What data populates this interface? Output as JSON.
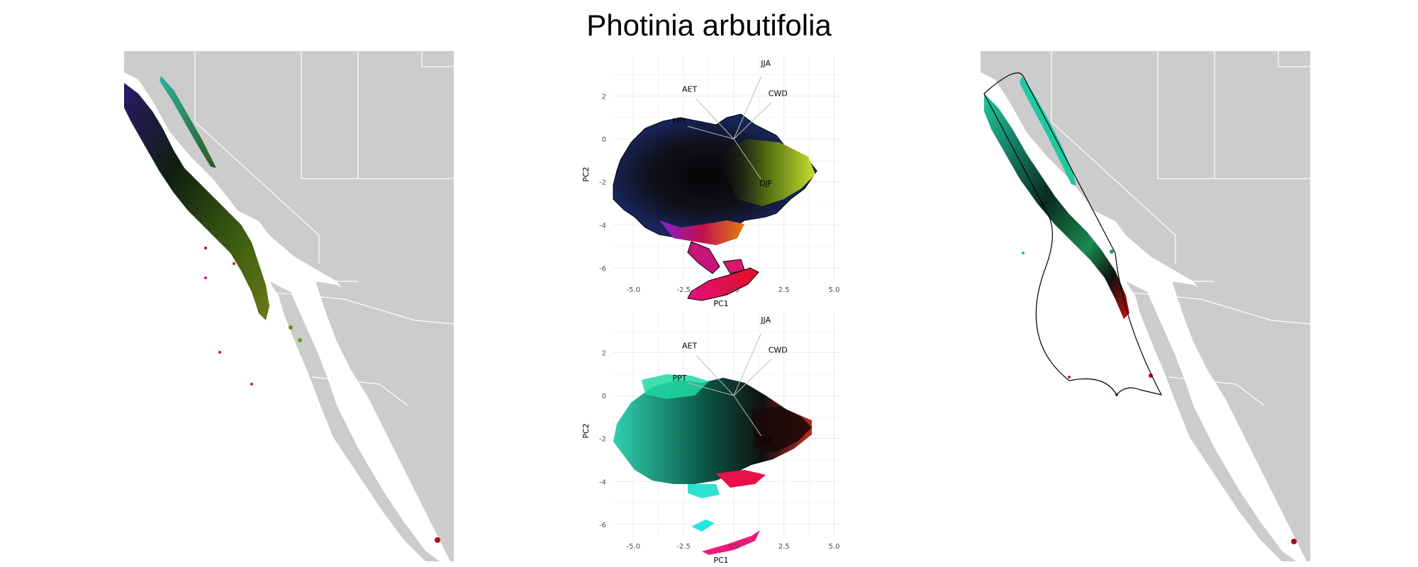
{
  "title": "Photinia arbutifolia",
  "chart_data": [
    {
      "type": "scatter",
      "panel": "top",
      "xlabel": "PC1",
      "ylabel": "PC2",
      "xlim": [
        -6,
        5.3
      ],
      "ylim": [
        -6.6,
        3.9
      ],
      "x_ticks": [
        "-5.0",
        "-2.5",
        "0.0",
        "2.5",
        "5.0"
      ],
      "y_ticks": [
        "2",
        "0",
        "-2",
        "-4",
        "-6"
      ],
      "grid": true,
      "loadings": [
        {
          "label": "JJA",
          "x": 1.6,
          "y": 3.4
        },
        {
          "label": "CWD",
          "x": 2.2,
          "y": 2.0
        },
        {
          "label": "AET",
          "x": -2.2,
          "y": 2.2
        },
        {
          "label": "PPT",
          "x": -2.7,
          "y": 0.7
        },
        {
          "label": "DJF",
          "x": 1.6,
          "y": -2.2
        }
      ]
    },
    {
      "type": "scatter",
      "panel": "bottom",
      "xlabel": "PC1",
      "ylabel": "PC2",
      "xlim": [
        -6,
        5.3
      ],
      "ylim": [
        -6.6,
        3.9
      ],
      "x_ticks": [
        "-5.0",
        "-2.5",
        "0.0",
        "2.5",
        "5.0"
      ],
      "y_ticks": [
        "2",
        "0",
        "-2",
        "-4",
        "-6"
      ],
      "grid": true,
      "loadings": [
        {
          "label": "JJA",
          "x": 1.6,
          "y": 3.4
        },
        {
          "label": "CWD",
          "x": 2.2,
          "y": 2.0
        },
        {
          "label": "AET",
          "x": -2.2,
          "y": 2.2
        },
        {
          "label": "PPT",
          "x": -2.7,
          "y": 0.7
        },
        {
          "label": "DJF",
          "x": 1.6,
          "y": -2.2
        }
      ]
    }
  ],
  "colors": {
    "land": "#cccccc",
    "border": "#ffffff",
    "grid": "#ebebeb",
    "hull": "#000000"
  }
}
